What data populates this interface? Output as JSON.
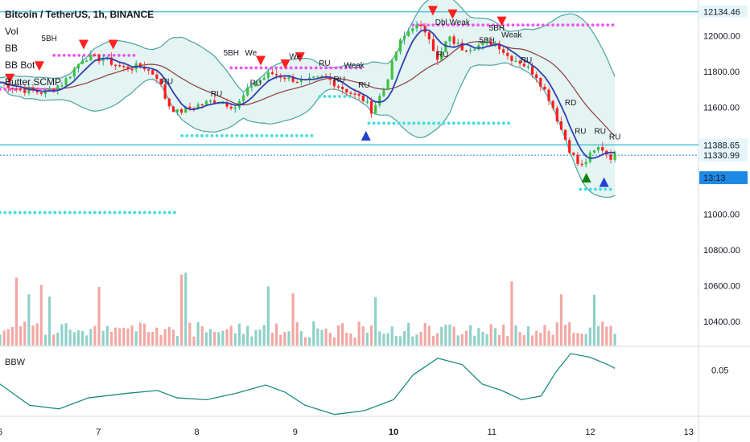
{
  "header": {
    "symbol_title": "Bitcoin / TetherUS, 1h, BINANCE",
    "indicators": [
      "Vol",
      "BB",
      "BB Bot",
      "Butter SCMP"
    ]
  },
  "bbw_label": "BBW",
  "price_badges": {
    "top": "12134.46",
    "mid": "11388.65",
    "last": "11330.99",
    "countdown": "13:13"
  },
  "colors": {
    "up": "#26a69a",
    "down": "#ef5350",
    "up_strong": "#3ec13e",
    "down_strong": "#ff1a1a",
    "band": "#4aa3a0",
    "band_fill": "#e4f4f2",
    "basis": "#8b3a3a",
    "fast_ma": "#2f3fb0",
    "res_dots": "#ee55ee",
    "sup_dots": "#44dddd",
    "hline": "#4fc3d6",
    "badge_bg": "#1e88e5",
    "axis_text": "#131722"
  },
  "chart_data": {
    "type": "candlestick",
    "title": "Bitcoin / TetherUS, 1h, BINANCE",
    "x_ticks": [
      "6",
      "7",
      "8",
      "9",
      "10",
      "11",
      "12",
      "13"
    ],
    "x_range": [
      6.0,
      13.1
    ],
    "y_ticks": [
      "12000.00",
      "11800.00",
      "11600.00",
      "11400.00",
      "11200.00",
      "11000.00",
      "10800.00",
      "10600.00",
      "10400.00"
    ],
    "y_tick_values": [
      12000,
      11800,
      11600,
      11400,
      11200,
      11000,
      10800,
      10600,
      10400
    ],
    "y_range": [
      10265,
      12200
    ],
    "price_path": [
      [
        6.0,
        11740
      ],
      [
        6.2,
        11700
      ],
      [
        6.45,
        11680
      ],
      [
        6.65,
        11740
      ],
      [
        6.85,
        11880
      ],
      [
        7.05,
        11870
      ],
      [
        7.25,
        11820
      ],
      [
        7.45,
        11830
      ],
      [
        7.6,
        11770
      ],
      [
        7.7,
        11620
      ],
      [
        7.8,
        11570
      ],
      [
        8.0,
        11610
      ],
      [
        8.2,
        11640
      ],
      [
        8.4,
        11600
      ],
      [
        8.55,
        11720
      ],
      [
        8.75,
        11790
      ],
      [
        8.95,
        11760
      ],
      [
        9.1,
        11740
      ],
      [
        9.3,
        11770
      ],
      [
        9.5,
        11700
      ],
      [
        9.7,
        11640
      ],
      [
        9.78,
        11580
      ],
      [
        9.9,
        11700
      ],
      [
        10.05,
        11950
      ],
      [
        10.2,
        12060
      ],
      [
        10.35,
        12020
      ],
      [
        10.45,
        11850
      ],
      [
        10.55,
        11990
      ],
      [
        10.7,
        11930
      ],
      [
        10.9,
        11950
      ],
      [
        11.05,
        11960
      ],
      [
        11.15,
        11890
      ],
      [
        11.3,
        11850
      ],
      [
        11.45,
        11780
      ],
      [
        11.6,
        11630
      ],
      [
        11.7,
        11480
      ],
      [
        11.8,
        11350
      ],
      [
        11.9,
        11260
      ],
      [
        12.0,
        11330
      ],
      [
        12.1,
        11380
      ],
      [
        12.2,
        11320
      ],
      [
        12.25,
        11331
      ]
    ],
    "volume_max_label_free": true,
    "bbw": {
      "y_ticks": [
        "0.05"
      ],
      "path": [
        [
          6.0,
          0.035
        ],
        [
          6.3,
          0.012
        ],
        [
          6.6,
          0.008
        ],
        [
          6.9,
          0.02
        ],
        [
          7.3,
          0.025
        ],
        [
          7.6,
          0.028
        ],
        [
          7.8,
          0.02
        ],
        [
          8.1,
          0.018
        ],
        [
          8.4,
          0.025
        ],
        [
          8.7,
          0.034
        ],
        [
          8.9,
          0.026
        ],
        [
          9.1,
          0.012
        ],
        [
          9.4,
          0.002
        ],
        [
          9.7,
          0.006
        ],
        [
          10.0,
          0.018
        ],
        [
          10.2,
          0.045
        ],
        [
          10.45,
          0.063
        ],
        [
          10.7,
          0.056
        ],
        [
          10.9,
          0.035
        ],
        [
          11.1,
          0.028
        ],
        [
          11.3,
          0.018
        ],
        [
          11.5,
          0.022
        ],
        [
          11.65,
          0.048
        ],
        [
          11.8,
          0.068
        ],
        [
          12.0,
          0.064
        ],
        [
          12.2,
          0.055
        ],
        [
          12.25,
          0.052
        ]
      ]
    },
    "signal_labels": [
      "5BH",
      "5BH",
      "5BH",
      "5BH",
      "RU",
      "RU",
      "RU",
      "RU",
      "RU",
      "RU",
      "RU",
      "RU",
      "RD",
      "RU",
      "RU",
      "We",
      "We",
      "Weak",
      "Weak",
      "Dbl Weak"
    ]
  }
}
